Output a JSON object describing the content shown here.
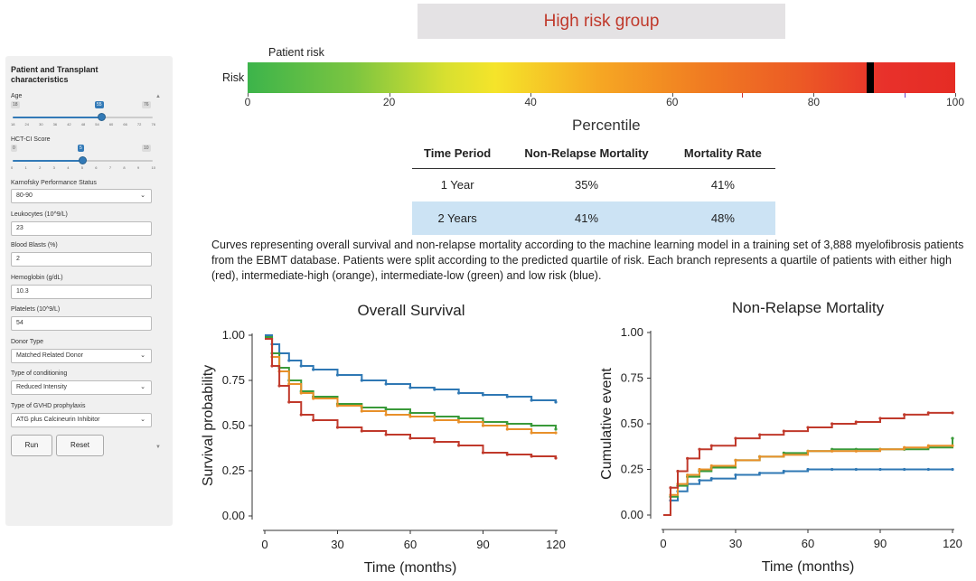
{
  "header": {
    "title": "High risk group"
  },
  "risk_bar": {
    "label": "Patient risk",
    "axis_label": "Risk",
    "ticks": [
      "0",
      "20",
      "40",
      "60",
      "80",
      "100"
    ],
    "xlabel": "Percentile",
    "marker_percentile": 88
  },
  "sidebar": {
    "title": "Patient and Transplant characteristics",
    "age": {
      "label": "Age",
      "min": "18",
      "max": "76",
      "value": "55",
      "value_num": 55,
      "min_num": 18,
      "max_num": 76,
      "ticks": [
        "18",
        "24",
        "30",
        "36",
        "42",
        "48",
        "54",
        "60",
        "66",
        "72",
        "76"
      ]
    },
    "hct": {
      "label": "HCT-CI Score",
      "min": "0",
      "max": "10",
      "value": "5",
      "value_num": 5,
      "min_num": 0,
      "max_num": 10,
      "ticks": [
        "0",
        "1",
        "2",
        "3",
        "4",
        "5",
        "6",
        "7",
        "8",
        "9",
        "10"
      ]
    },
    "karnofsky": {
      "label": "Karnofsky Performance Status",
      "value": "80-90"
    },
    "leukocytes": {
      "label": "Leukocytes (10^9/L)",
      "value": "23"
    },
    "blasts": {
      "label": "Blood Blasts (%)",
      "value": "2"
    },
    "hemoglobin": {
      "label": "Hemoglobin (g/dL)",
      "value": "10.3"
    },
    "platelets": {
      "label": "Platelets (10^9/L)",
      "value": "54"
    },
    "donor": {
      "label": "Donor Type",
      "value": "Matched Related Donor"
    },
    "conditioning": {
      "label": "Type of conditioning",
      "value": "Reduced Intensity"
    },
    "gvhd": {
      "label": "Type of GVHD prophylaxis",
      "value": "ATG plus Calcineurin Inhibitor"
    },
    "run_label": "Run",
    "reset_label": "Reset"
  },
  "table": {
    "headers": [
      "Time Period",
      "Non-Relapse Mortality",
      "Mortality Rate"
    ],
    "rows": [
      [
        "1 Year",
        "35%",
        "41%"
      ],
      [
        "2 Years",
        "41%",
        "48%"
      ]
    ]
  },
  "description": "Curves representing overall survival and non-relapse mortality according to the machine learning model in a training set of 3,888 myelofibrosis patients from the EBMT database. Patients were split according to the predicted quartile of risk. Each branch represents a quartile of patients with either high (red), intermediate-high (orange), intermediate-low (green) and low risk (blue).",
  "colors": {
    "high": "#c0392b",
    "inthigh": "#e8902a",
    "intlow": "#3a9a3a",
    "low": "#2f78b4"
  },
  "chart_data": [
    {
      "type": "line",
      "title": "Overall Survival",
      "xlabel": "Time (months)",
      "ylabel": "Survival probability",
      "xlim": [
        0,
        120
      ],
      "ylim": [
        0,
        1
      ],
      "xticks": [
        "0",
        "30",
        "60",
        "90",
        "120"
      ],
      "yticks": [
        "0.00",
        "0.25",
        "0.50",
        "0.75",
        "1.00"
      ],
      "series": [
        {
          "name": "low",
          "x": [
            0,
            3,
            6,
            10,
            15,
            20,
            30,
            40,
            50,
            60,
            70,
            80,
            90,
            100,
            110,
            120
          ],
          "y": [
            1.0,
            0.95,
            0.9,
            0.86,
            0.83,
            0.81,
            0.78,
            0.75,
            0.73,
            0.71,
            0.7,
            0.68,
            0.67,
            0.66,
            0.64,
            0.63
          ]
        },
        {
          "name": "intlow",
          "x": [
            0,
            3,
            6,
            10,
            15,
            20,
            30,
            40,
            50,
            60,
            70,
            80,
            90,
            100,
            110,
            120
          ],
          "y": [
            0.99,
            0.9,
            0.82,
            0.75,
            0.69,
            0.66,
            0.62,
            0.6,
            0.59,
            0.57,
            0.55,
            0.54,
            0.52,
            0.51,
            0.5,
            0.48
          ]
        },
        {
          "name": "inthigh",
          "x": [
            0,
            3,
            6,
            10,
            15,
            20,
            30,
            40,
            50,
            60,
            70,
            80,
            90,
            100,
            110,
            120
          ],
          "y": [
            0.98,
            0.88,
            0.8,
            0.73,
            0.68,
            0.65,
            0.61,
            0.58,
            0.56,
            0.55,
            0.53,
            0.52,
            0.5,
            0.48,
            0.46,
            0.46
          ]
        },
        {
          "name": "high",
          "x": [
            0,
            3,
            6,
            10,
            15,
            20,
            30,
            40,
            50,
            60,
            70,
            80,
            90,
            100,
            110,
            120
          ],
          "y": [
            0.98,
            0.83,
            0.72,
            0.63,
            0.56,
            0.53,
            0.49,
            0.47,
            0.45,
            0.43,
            0.41,
            0.39,
            0.35,
            0.34,
            0.33,
            0.32
          ]
        }
      ]
    },
    {
      "type": "line",
      "title": "Non-Relapse Mortality",
      "xlabel": "Time (months)",
      "ylabel": "Cumulative event",
      "xlim": [
        0,
        120
      ],
      "ylim": [
        0,
        1
      ],
      "xticks": [
        "0",
        "30",
        "60",
        "90",
        "120"
      ],
      "yticks": [
        "0.00",
        "0.25",
        "0.50",
        "0.75",
        "1.00"
      ],
      "series": [
        {
          "name": "low",
          "x": [
            0,
            3,
            6,
            10,
            15,
            20,
            30,
            40,
            50,
            60,
            70,
            80,
            90,
            100,
            110,
            120
          ],
          "y": [
            0.0,
            0.08,
            0.13,
            0.17,
            0.19,
            0.2,
            0.22,
            0.23,
            0.24,
            0.25,
            0.25,
            0.25,
            0.25,
            0.25,
            0.25,
            0.25
          ]
        },
        {
          "name": "intlow",
          "x": [
            0,
            3,
            6,
            10,
            15,
            20,
            30,
            40,
            50,
            60,
            70,
            80,
            90,
            100,
            110,
            120
          ],
          "y": [
            0.0,
            0.1,
            0.16,
            0.21,
            0.24,
            0.26,
            0.3,
            0.32,
            0.34,
            0.35,
            0.36,
            0.36,
            0.36,
            0.36,
            0.37,
            0.42
          ]
        },
        {
          "name": "inthigh",
          "x": [
            0,
            3,
            6,
            10,
            15,
            20,
            30,
            40,
            50,
            60,
            70,
            80,
            90,
            100,
            110,
            120
          ],
          "y": [
            0.0,
            0.11,
            0.17,
            0.22,
            0.25,
            0.27,
            0.3,
            0.32,
            0.33,
            0.35,
            0.35,
            0.35,
            0.36,
            0.37,
            0.38,
            0.38
          ]
        },
        {
          "name": "high",
          "x": [
            0,
            3,
            6,
            10,
            15,
            20,
            30,
            40,
            50,
            60,
            70,
            80,
            90,
            100,
            110,
            120
          ],
          "y": [
            0.0,
            0.15,
            0.24,
            0.31,
            0.36,
            0.38,
            0.42,
            0.44,
            0.46,
            0.48,
            0.5,
            0.51,
            0.53,
            0.55,
            0.56,
            0.56
          ]
        }
      ]
    }
  ]
}
